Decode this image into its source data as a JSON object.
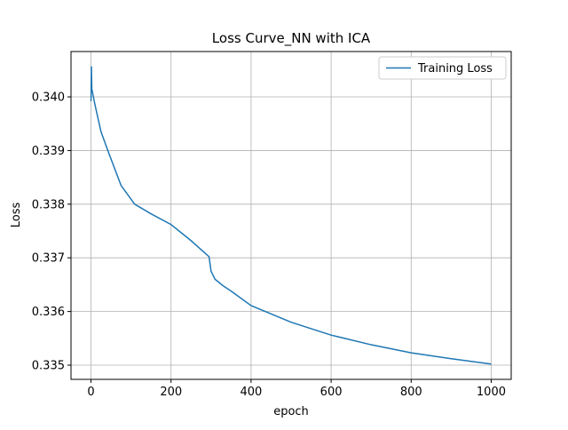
{
  "chart_data": {
    "type": "line",
    "title": "Loss Curve_NN with ICA",
    "x_label": "epoch",
    "y_label": "Loss",
    "x": [
      0,
      1,
      2,
      10,
      25,
      42,
      75,
      109,
      150,
      200,
      250,
      295,
      300,
      310,
      330,
      350,
      400,
      500,
      600,
      700,
      800,
      900,
      1000
    ],
    "series": [
      {
        "name": "Training Loss",
        "color": "#1f77b4",
        "values": [
          0.33992,
          0.34057,
          0.34015,
          0.33985,
          0.33935,
          0.339,
          0.33835,
          0.338,
          0.33782,
          0.33762,
          0.33732,
          0.33702,
          0.33675,
          0.3366,
          0.33648,
          0.33638,
          0.33611,
          0.3358,
          0.33556,
          0.33538,
          0.33523,
          0.33512,
          0.33502
        ]
      }
    ],
    "xlim": [
      -50,
      1050
    ],
    "ylim": [
      0.334735,
      0.340845
    ],
    "xticks": [
      0,
      200,
      400,
      600,
      800,
      1000
    ],
    "yticks": [
      0.335,
      0.336,
      0.337,
      0.338,
      0.339,
      {
        "value": 0.34,
        "label": "0.340"
      }
    ],
    "grid": true,
    "legend": "upper right"
  }
}
